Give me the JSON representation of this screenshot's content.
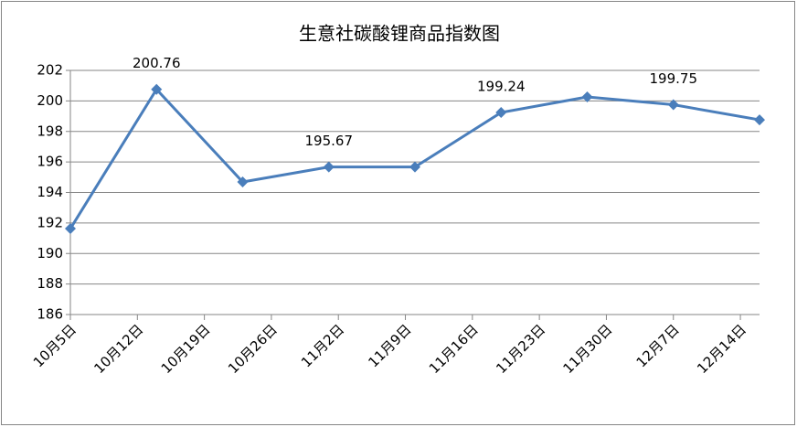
{
  "chart_data": {
    "type": "line",
    "title": "生意社碳酸锂商品指数图",
    "x": [
      0,
      9,
      18,
      27,
      36,
      45,
      54,
      63,
      72
    ],
    "series": [
      {
        "name": "生意社碳酸锂商品指数",
        "color": "#4a7ebb",
        "values": [
          191.63,
          200.76,
          194.69,
          195.67,
          195.67,
          199.24,
          200.26,
          199.75,
          198.76
        ],
        "value_labels": [
          null,
          "200.76",
          null,
          "195.67",
          null,
          "199.24",
          null,
          "199.75",
          null
        ]
      }
    ],
    "xlim": [
      0,
      72
    ],
    "xticks": [
      {
        "value": 0,
        "label": "10月5日"
      },
      {
        "value": 7,
        "label": "10月12日"
      },
      {
        "value": 14,
        "label": "10月19日"
      },
      {
        "value": 21,
        "label": "10月26日"
      },
      {
        "value": 28,
        "label": "11月2日"
      },
      {
        "value": 35,
        "label": "11月9日"
      },
      {
        "value": 42,
        "label": "11月16日"
      },
      {
        "value": 49,
        "label": "11月23日"
      },
      {
        "value": 56,
        "label": "11月30日"
      },
      {
        "value": 63,
        "label": "12月7日"
      },
      {
        "value": 70,
        "label": "12月14日"
      }
    ],
    "ylim": [
      186,
      202
    ],
    "yticks": [
      186,
      188,
      190,
      192,
      194,
      196,
      198,
      200,
      202
    ],
    "grid": true
  }
}
